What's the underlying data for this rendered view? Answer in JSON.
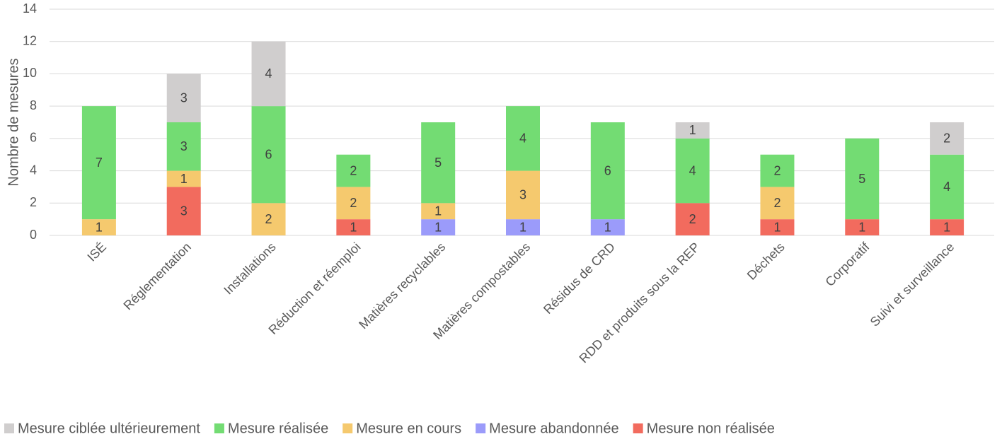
{
  "chart_data": {
    "type": "stacked_bar",
    "y_label": "Nombre de mesures",
    "categories": [
      "ISÉ",
      "Réglementation",
      "Installations",
      "Réduction et réemploi",
      "Matières recyclables",
      "Matières compostables",
      "Résidus de CRD",
      "RDD et produits sous la REP",
      "Déchets",
      "Corporatif",
      "Suivi et surveillance"
    ],
    "series": [
      {
        "name": "Mesure ciblée ultérieurement",
        "color": "#d0cece",
        "values": [
          0,
          3,
          4,
          0,
          0,
          0,
          0,
          1,
          0,
          0,
          2
        ]
      },
      {
        "name": "Mesure réalisée",
        "color": "#73dc73",
        "values": [
          7,
          3,
          6,
          2,
          5,
          4,
          6,
          4,
          2,
          5,
          4
        ]
      },
      {
        "name": "Mesure en cours",
        "color": "#f5c96e",
        "values": [
          1,
          1,
          2,
          2,
          1,
          3,
          0,
          0,
          2,
          0,
          0
        ]
      },
      {
        "name": "Mesure abandonnée",
        "color": "#9b9bfa",
        "values": [
          0,
          0,
          0,
          0,
          1,
          1,
          1,
          0,
          0,
          0,
          0
        ]
      },
      {
        "name": "Mesure non réalisée",
        "color": "#f26b5e",
        "values": [
          0,
          3,
          0,
          1,
          0,
          0,
          0,
          2,
          1,
          1,
          1
        ]
      }
    ],
    "ylim": [
      0,
      14
    ],
    "yticks": [
      0,
      2,
      4,
      6,
      8,
      10,
      12,
      14
    ],
    "grid": true,
    "legend": "bottom"
  }
}
